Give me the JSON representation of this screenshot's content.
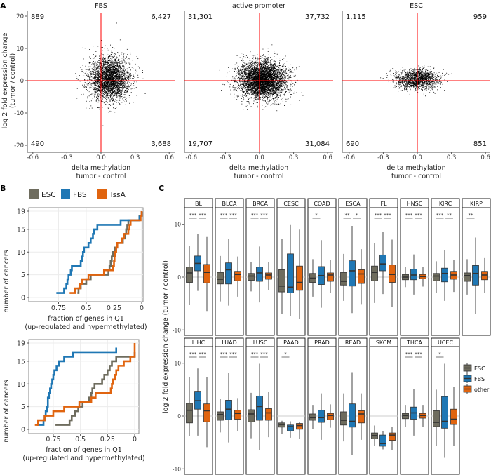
{
  "panel_labels": {
    "a": "A",
    "b": "B",
    "c": "C"
  },
  "colors": {
    "ESC": "#6e6c5e",
    "FBS": "#1f77b4",
    "TssA": "#e0640f",
    "other": "#e0640f",
    "refline": "#ff0000",
    "points": "#000000"
  },
  "chart_data": [
    {
      "type": "scatter",
      "panel": "A",
      "ylabel_line1": "log 2 fold expression change",
      "ylabel_line2": "(tumor / control)",
      "xlabel_line1": "delta methylation",
      "xlabel_line2": "tumor - control",
      "xlim": [
        -0.63,
        0.68
      ],
      "ylim": [
        -21,
        22
      ],
      "x_ticks": [
        "-0.6",
        "-0.3",
        "0.0",
        "0.3",
        "0.6"
      ],
      "x_tick_values": [
        -0.6,
        -0.3,
        0,
        0.3,
        0.6
      ],
      "y_ticks": [
        "20",
        "10",
        "0",
        "-10",
        "-20"
      ],
      "y_tick_values": [
        20,
        10,
        0,
        -10,
        -20
      ],
      "reference_lines": {
        "x": 0,
        "y": 0
      },
      "facets": [
        {
          "title": "FBS",
          "quadrant_counts": {
            "top_left": "889",
            "top_right": "6,427",
            "bottom_left": "490",
            "bottom_right": "3,688"
          }
        },
        {
          "title": "active promoter",
          "quadrant_counts": {
            "top_left": "31,301",
            "top_right": "37,732",
            "bottom_left": "19,707",
            "bottom_right": "31,084"
          }
        },
        {
          "title": "ESC",
          "quadrant_counts": {
            "top_left": "1,115",
            "top_right": "959",
            "bottom_left": "690",
            "bottom_right": "851"
          }
        }
      ]
    },
    {
      "type": "line",
      "panel": "B",
      "step": true,
      "legend": [
        "ESC",
        "FBS",
        "TssA"
      ],
      "legend_placement": "top",
      "ylabel": "number of cancers",
      "xlabel_line1": "fraction of genes in Q1",
      "xlabel_line2": "(up-regulated and hypermethylated)",
      "x_reversed": true,
      "grid": true,
      "x_ticks": [
        "0.75",
        "0.5",
        "0.25",
        "0"
      ],
      "x_tick_values": [
        0.75,
        0.5,
        0.25,
        0
      ],
      "y_ticks": [
        "19",
        "15",
        "10",
        "5",
        "0"
      ],
      "y_tick_values": [
        19,
        15,
        10,
        5,
        0
      ],
      "plots": [
        {
          "series": [
            {
              "name": "ESC",
              "x": [
                0.58,
                0.57,
                0.55,
                0.5,
                0.46,
                0.3,
                0.29,
                0.28,
                0.27,
                0.26,
                0.24,
                0.22,
                0.17,
                0.15,
                0.14,
                0.13,
                0.12,
                0.02,
                0.0
              ]
            },
            {
              "name": "FBS",
              "x": [
                0.77,
                0.7,
                0.68,
                0.67,
                0.66,
                0.64,
                0.63,
                0.55,
                0.54,
                0.53,
                0.52,
                0.48,
                0.46,
                0.44,
                0.43,
                0.4,
                0.19,
                0.02
              ]
            },
            {
              "name": "TssA",
              "x": [
                0.65,
                0.6,
                0.56,
                0.54,
                0.48,
                0.34,
                0.26,
                0.25,
                0.245,
                0.24,
                0.23,
                0.22,
                0.18,
                0.16,
                0.12,
                0.11,
                0.1,
                0.01,
                0.0
              ]
            }
          ]
        },
        {
          "series": [
            {
              "name": "ESC",
              "x": [
                0.73,
                0.6,
                0.58,
                0.55,
                0.52,
                0.48,
                0.42,
                0.4,
                0.39,
                0.37,
                0.3,
                0.28,
                0.25,
                0.23,
                0.21,
                0.17,
                0.0
              ]
            },
            {
              "name": "FBS",
              "x": [
                0.9,
                0.84,
                0.83,
                0.82,
                0.81,
                0.8,
                0.8,
                0.79,
                0.78,
                0.77,
                0.76,
                0.75,
                0.74,
                0.72,
                0.7,
                0.65,
                0.57,
                0.17
              ]
            },
            {
              "name": "TssA",
              "x": [
                0.92,
                0.89,
                0.83,
                0.75,
                0.65,
                0.51,
                0.4,
                0.36,
                0.22,
                0.21,
                0.2,
                0.18,
                0.17,
                0.15,
                0.1,
                0.04,
                0.0,
                0.0,
                0.0
              ]
            }
          ]
        }
      ]
    },
    {
      "type": "box",
      "panel": "C",
      "ylabel": "log 2 fold expression change (tumor / control)",
      "ylim": [
        -11,
        13.1
      ],
      "y_ticks": [
        "10",
        "0",
        "-10"
      ],
      "y_tick_values": [
        10,
        0,
        -10
      ],
      "groups": [
        "ESC",
        "FBS",
        "other"
      ],
      "legend": [
        "ESC",
        "FBS",
        "other"
      ],
      "legend_placement": "right",
      "box_value_order": [
        "whisker_low",
        "q1",
        "median",
        "q3",
        "whisker_high"
      ],
      "facets": [
        {
          "name": "BL",
          "sig": [
            "***",
            "***"
          ],
          "ESC": [
            -5.2,
            -1.0,
            0.8,
            1.9,
            5.9
          ],
          "FBS": [
            -2.6,
            1.2,
            2.6,
            4.0,
            8.1
          ],
          "other": [
            -6.4,
            -1.1,
            0.9,
            2.4,
            7.6
          ]
        },
        {
          "name": "BLCA",
          "sig": [
            "***",
            "***"
          ],
          "ESC": [
            -4.6,
            -1.3,
            -0.4,
            0.9,
            4.0
          ],
          "FBS": [
            -5.4,
            -1.3,
            1.4,
            2.7,
            7.2
          ],
          "other": [
            -3.7,
            -0.7,
            0.5,
            1.1,
            3.9
          ]
        },
        {
          "name": "BRCA",
          "sig": [
            "***",
            "***"
          ],
          "ESC": [
            -2.7,
            -0.6,
            0.2,
            0.7,
            2.8
          ],
          "FBS": [
            -4.8,
            -0.8,
            0.8,
            1.9,
            5.8
          ],
          "other": [
            -2.4,
            -0.4,
            0.4,
            0.8,
            2.8
          ]
        },
        {
          "name": "CESC",
          "sig": [
            "",
            ""
          ],
          "ESC": [
            -7.0,
            -2.8,
            -1.7,
            1.4,
            7.3
          ],
          "FBS": [
            -7.4,
            -3.0,
            -1.9,
            4.4,
            10.0
          ],
          "other": [
            -7.9,
            -2.5,
            -1.0,
            2.1,
            9.0
          ]
        },
        {
          "name": "COAD",
          "sig": [
            "*",
            ""
          ],
          "ESC": [
            -3.7,
            -1.0,
            -0.2,
            0.7,
            3.4
          ],
          "FBS": [
            -5.8,
            -1.4,
            0.3,
            2.0,
            7.0
          ],
          "other": [
            -3.0,
            -0.8,
            0.4,
            0.8,
            3.2
          ]
        },
        {
          "name": "ESCA",
          "sig": [
            "**",
            "*"
          ],
          "ESC": [
            -4.5,
            -1.5,
            -0.8,
            0.9,
            4.4
          ],
          "FBS": [
            -6.8,
            -1.7,
            1.2,
            3.1,
            9.7
          ],
          "other": [
            -5.1,
            -1.2,
            0.6,
            1.4,
            5.3
          ]
        },
        {
          "name": "FL",
          "sig": [
            "***",
            "***"
          ],
          "ESC": [
            -4.9,
            -0.7,
            0.9,
            2.1,
            6.4
          ],
          "FBS": [
            -3.2,
            1.2,
            2.5,
            4.2,
            8.6
          ],
          "other": [
            -5.7,
            -1.0,
            0.5,
            2.3,
            7.1
          ]
        },
        {
          "name": "HNSC",
          "sig": [
            "***",
            "***"
          ],
          "ESC": [
            -1.9,
            -0.5,
            0.0,
            0.5,
            1.9
          ],
          "FBS": [
            -3.3,
            -0.5,
            0.4,
            1.5,
            4.3
          ],
          "other": [
            -1.8,
            -0.3,
            0.1,
            0.5,
            2.0
          ]
        },
        {
          "name": "KIRC",
          "sig": [
            "***",
            "**"
          ],
          "ESC": [
            -3.0,
            -0.7,
            0.2,
            0.7,
            3.0
          ],
          "FBS": [
            -4.5,
            -0.9,
            0.7,
            1.7,
            5.1
          ],
          "other": [
            -2.8,
            -0.4,
            0.4,
            1.1,
            3.3
          ]
        },
        {
          "name": "KIRP",
          "sig": [
            "**",
            ""
          ],
          "ESC": [
            -3.3,
            -0.8,
            0.3,
            0.8,
            3.4
          ],
          "FBS": [
            -7.0,
            -1.5,
            0.7,
            2.2,
            7.5
          ],
          "other": [
            -3.0,
            -0.5,
            0.4,
            1.1,
            3.6
          ]
        },
        {
          "name": "LIHC",
          "sig": [
            "***",
            "***"
          ],
          "ESC": [
            -3.8,
            -1.3,
            1.1,
            2.4,
            7.4
          ],
          "FBS": [
            -3.7,
            1.3,
            2.9,
            4.7,
            9.0
          ],
          "other": [
            -5.9,
            -1.1,
            1.0,
            2.3,
            7.3
          ]
        },
        {
          "name": "LUAD",
          "sig": [
            "***",
            "***"
          ],
          "ESC": [
            -3.1,
            -0.8,
            0.3,
            0.8,
            3.2
          ],
          "FBS": [
            -5.0,
            -0.7,
            1.3,
            3.0,
            8.1
          ],
          "other": [
            -2.9,
            -0.6,
            0.5,
            1.1,
            3.4
          ]
        },
        {
          "name": "LUSC",
          "sig": [
            "***",
            "***"
          ],
          "ESC": [
            -4.2,
            -1.1,
            0.4,
            1.2,
            4.4
          ],
          "FBS": [
            -6.4,
            -0.8,
            1.8,
            3.8,
            9.9
          ],
          "other": [
            -4.0,
            -0.8,
            0.6,
            1.4,
            4.6
          ]
        },
        {
          "name": "PAAD",
          "sig": [
            "*",
            ""
          ],
          "ESC": [
            -3.4,
            -2.1,
            -1.6,
            -1.3,
            -0.9
          ],
          "FBS": [
            -4.1,
            -2.8,
            -2.0,
            -1.7,
            -1.0
          ],
          "other": [
            -4.3,
            -2.5,
            -1.8,
            -1.4,
            -1.1
          ]
        },
        {
          "name": "PRAD",
          "sig": [
            "",
            ""
          ],
          "ESC": [
            -2.4,
            -0.8,
            -0.3,
            0.4,
            2.1
          ],
          "FBS": [
            -4.5,
            -1.2,
            -0.3,
            1.1,
            4.3
          ],
          "other": [
            -2.2,
            -0.7,
            0.1,
            0.5,
            2.2
          ]
        },
        {
          "name": "READ",
          "sig": [
            "",
            ""
          ],
          "ESC": [
            -4.8,
            -1.7,
            -0.8,
            0.8,
            4.3
          ],
          "FBS": [
            -7.3,
            -2.1,
            -1.0,
            2.3,
            8.3
          ],
          "other": [
            -4.5,
            -1.3,
            0.4,
            1.0,
            4.3
          ]
        },
        {
          "name": "SKCM",
          "sig": [
            "",
            ""
          ],
          "ESC": [
            -5.6,
            -4.3,
            -3.7,
            -3.2,
            -1.8
          ],
          "FBS": [
            -6.3,
            -5.7,
            -5.2,
            -3.6,
            -2.8
          ],
          "other": [
            -6.5,
            -4.6,
            -3.6,
            -3.2,
            -2.1
          ]
        },
        {
          "name": "THCA",
          "sig": [
            "***",
            "***"
          ],
          "ESC": [
            -2.1,
            -0.5,
            0.1,
            0.5,
            2.1
          ],
          "FBS": [
            -3.7,
            -0.6,
            0.6,
            1.7,
            5.1
          ],
          "other": [
            -2.0,
            -0.4,
            0.1,
            0.5,
            2.1
          ]
        },
        {
          "name": "UCEC",
          "sig": [
            "*",
            ""
          ],
          "ESC": [
            -5.6,
            -2.0,
            -1.2,
            1.0,
            5.0
          ],
          "FBS": [
            -7.9,
            -2.3,
            -1.0,
            3.7,
            9.9
          ],
          "other": [
            -5.7,
            -1.6,
            -0.6,
            1.3,
            5.5
          ]
        }
      ]
    }
  ]
}
